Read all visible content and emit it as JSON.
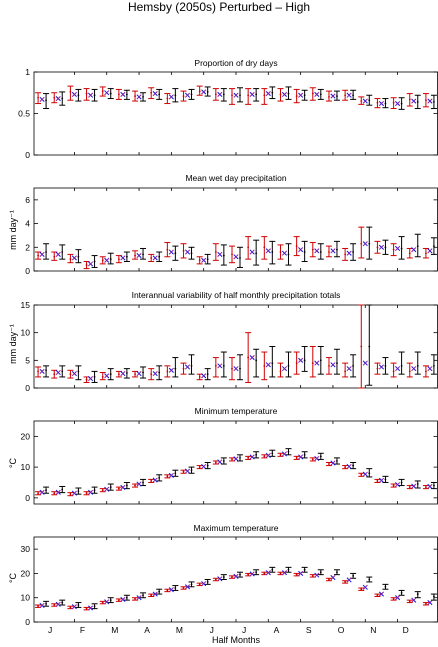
{
  "title": "Hemsby (2050s) Perturbed – High",
  "colors": {
    "black": "#000000",
    "red": "#d00000",
    "blue": "#1010e0",
    "purple": "#8a1aa0",
    "axis": "#000000"
  },
  "chart_data": [
    {
      "type": "errorbar",
      "title": "Proportion of dry days",
      "ylabel": "",
      "ylim": [
        0,
        1
      ],
      "yticks": [
        0,
        0.5,
        1
      ],
      "ytick_labels": [
        "0",
        "0.5",
        "1"
      ],
      "series": [
        {
          "name": "",
          "color": "#000000",
          "center": [
            0.66,
            0.68,
            0.72,
            0.72,
            0.74,
            0.73,
            0.7,
            0.73,
            0.72,
            0.73,
            0.76,
            0.73,
            0.72,
            0.73,
            0.75,
            0.74,
            0.72,
            0.73,
            0.71,
            0.72,
            0.66,
            0.62,
            0.62,
            0.64,
            0.64
          ],
          "low": [
            0.56,
            0.6,
            0.65,
            0.65,
            0.68,
            0.67,
            0.65,
            0.67,
            0.64,
            0.67,
            0.71,
            0.65,
            0.64,
            0.65,
            0.68,
            0.67,
            0.66,
            0.67,
            0.66,
            0.67,
            0.6,
            0.57,
            0.55,
            0.56,
            0.56
          ],
          "high": [
            0.74,
            0.76,
            0.79,
            0.79,
            0.8,
            0.78,
            0.75,
            0.79,
            0.8,
            0.79,
            0.82,
            0.8,
            0.81,
            0.8,
            0.82,
            0.82,
            0.78,
            0.79,
            0.77,
            0.78,
            0.72,
            0.68,
            0.69,
            0.72,
            0.72
          ]
        },
        {
          "name": "",
          "color": "#d00000",
          "center": [
            0.69,
            0.69,
            0.76,
            0.74,
            0.77,
            0.73,
            0.71,
            0.75,
            0.68,
            0.71,
            0.77,
            0.73,
            0.72,
            0.72,
            0.72,
            0.73,
            0.71,
            0.74,
            0.7,
            0.72,
            0.65,
            0.63,
            0.63,
            0.67,
            0.66
          ],
          "low": [
            0.62,
            0.63,
            0.66,
            0.66,
            0.71,
            0.67,
            0.65,
            0.68,
            0.62,
            0.65,
            0.72,
            0.66,
            0.61,
            0.61,
            0.61,
            0.65,
            0.63,
            0.66,
            0.65,
            0.66,
            0.61,
            0.57,
            0.56,
            0.59,
            0.58
          ],
          "high": [
            0.75,
            0.75,
            0.83,
            0.8,
            0.82,
            0.79,
            0.77,
            0.81,
            0.74,
            0.77,
            0.83,
            0.8,
            0.8,
            0.8,
            0.8,
            0.8,
            0.79,
            0.81,
            0.77,
            0.78,
            0.7,
            0.68,
            0.69,
            0.74,
            0.74
          ]
        }
      ],
      "markers": [
        0.67,
        0.68,
        0.73,
        0.72,
        0.75,
        0.73,
        0.7,
        0.74,
        0.7,
        0.72,
        0.76,
        0.73,
        0.72,
        0.73,
        0.74,
        0.73,
        0.72,
        0.73,
        0.71,
        0.72,
        0.65,
        0.62,
        0.62,
        0.65,
        0.65
      ]
    },
    {
      "type": "errorbar",
      "title": "Mean wet day precipitation",
      "ylabel": "mm day⁻¹",
      "ylim": [
        0,
        7
      ],
      "yticks": [
        0,
        2,
        4,
        6
      ],
      "ytick_labels": [
        "0",
        "2",
        "4",
        "6"
      ],
      "series": [
        {
          "name": "",
          "color": "#000000",
          "center": [
            1.6,
            1.6,
            1.2,
            0.8,
            1.0,
            1.2,
            1.4,
            1.2,
            1.5,
            1.5,
            1.0,
            1.3,
            1.1,
            1.5,
            1.6,
            1.4,
            1.6,
            1.6,
            1.8,
            1.6,
            2.3,
            2.0,
            1.9,
            2.1,
            2.1
          ],
          "low": [
            1.0,
            1.0,
            0.7,
            0.3,
            0.6,
            0.8,
            1.0,
            0.8,
            0.9,
            1.0,
            0.6,
            0.5,
            0.3,
            0.5,
            0.6,
            0.5,
            0.8,
            1.0,
            1.2,
            0.9,
            1.0,
            1.4,
            1.0,
            1.2,
            1.4
          ],
          "high": [
            2.3,
            2.2,
            1.8,
            1.3,
            1.5,
            1.6,
            1.9,
            1.6,
            2.1,
            2.0,
            1.4,
            2.2,
            2.0,
            2.6,
            2.5,
            2.3,
            2.5,
            2.3,
            2.5,
            2.3,
            3.7,
            2.6,
            2.9,
            3.1,
            2.8
          ]
        },
        {
          "name": "",
          "color": "#d00000",
          "center": [
            1.3,
            1.2,
            1.0,
            0.5,
            0.9,
            1.0,
            1.3,
            1.1,
            1.8,
            1.7,
            0.9,
            1.6,
            1.4,
            2.0,
            2.0,
            1.6,
            2.1,
            1.8,
            1.6,
            1.4,
            2.3,
            2.0,
            1.8,
            1.5,
            1.5
          ],
          "low": [
            1.0,
            0.9,
            0.7,
            0.2,
            0.6,
            0.7,
            1.0,
            0.8,
            1.2,
            1.1,
            0.6,
            0.9,
            0.7,
            1.0,
            1.0,
            1.0,
            1.3,
            1.2,
            1.2,
            0.9,
            1.1,
            1.5,
            1.3,
            1.1,
            1.1
          ],
          "high": [
            1.6,
            1.6,
            1.4,
            0.8,
            1.2,
            1.3,
            1.7,
            1.4,
            2.4,
            2.3,
            1.2,
            2.3,
            2.1,
            2.9,
            2.9,
            2.2,
            2.9,
            2.4,
            2.1,
            1.9,
            3.7,
            2.5,
            2.3,
            1.9,
            1.9
          ]
        }
      ],
      "markers": [
        1.4,
        1.4,
        1.1,
        0.6,
        0.9,
        1.1,
        1.3,
        1.1,
        1.6,
        1.6,
        0.9,
        1.4,
        1.2,
        1.6,
        1.7,
        1.5,
        1.8,
        1.7,
        1.7,
        1.5,
        2.3,
        2.0,
        1.9,
        1.8,
        1.7
      ]
    },
    {
      "type": "errorbar",
      "title": "Interannual variability of half monthly precipitation totals",
      "ylabel": "mm day⁻¹",
      "ylim": [
        0,
        15
      ],
      "yticks": [
        0,
        5,
        10,
        15
      ],
      "ytick_labels": [
        "0",
        "5",
        "10",
        "15"
      ],
      "series": [
        {
          "name": "",
          "color": "#000000",
          "center": [
            3.2,
            3.0,
            3.0,
            2.0,
            2.5,
            2.7,
            2.8,
            2.8,
            3.5,
            4.0,
            2.5,
            4.0,
            3.5,
            5.0,
            4.5,
            4.0,
            5.0,
            5.0,
            4.5,
            4.0,
            7.5,
            4.0,
            4.0,
            4.0,
            4.0
          ],
          "low": [
            2.0,
            2.0,
            1.5,
            1.0,
            1.5,
            1.8,
            1.8,
            1.5,
            2.0,
            2.5,
            1.5,
            2.0,
            1.5,
            2.0,
            2.0,
            2.0,
            3.0,
            2.5,
            2.5,
            2.0,
            0.5,
            2.5,
            2.5,
            2.5,
            2.5
          ],
          "high": [
            4.0,
            4.0,
            4.0,
            3.0,
            3.5,
            3.5,
            3.8,
            4.0,
            5.5,
            6.0,
            3.5,
            6.5,
            6.0,
            7.0,
            7.5,
            6.5,
            7.5,
            7.5,
            7.0,
            6.0,
            15.0,
            5.5,
            6.5,
            6.5,
            6.0
          ]
        },
        {
          "name": "",
          "color": "#d00000",
          "center": [
            3.0,
            2.5,
            2.5,
            1.5,
            2.0,
            2.5,
            2.5,
            2.5,
            3.0,
            3.5,
            2.0,
            4.0,
            3.5,
            5.5,
            4.0,
            3.0,
            4.5,
            4.5,
            4.0,
            3.0,
            7.5,
            3.5,
            3.0,
            3.0,
            3.0
          ],
          "low": [
            2.0,
            1.8,
            1.8,
            1.0,
            1.5,
            2.0,
            2.0,
            1.5,
            2.0,
            2.5,
            1.5,
            2.0,
            1.5,
            1.0,
            1.5,
            2.0,
            2.5,
            2.0,
            2.5,
            2.0,
            0.0,
            2.5,
            2.0,
            2.0,
            2.0
          ],
          "high": [
            3.8,
            3.2,
            3.2,
            2.0,
            2.8,
            3.0,
            3.0,
            3.5,
            4.0,
            4.5,
            2.5,
            5.5,
            5.5,
            10.0,
            6.5,
            4.5,
            6.5,
            7.5,
            5.5,
            4.5,
            15.0,
            4.5,
            4.5,
            4.5,
            4.0
          ]
        }
      ],
      "markers": [
        3.0,
        2.8,
        2.6,
        1.7,
        2.2,
        2.6,
        2.6,
        2.6,
        3.2,
        3.8,
        2.2,
        4.0,
        3.5,
        5.5,
        4.2,
        3.5,
        5.0,
        4.5,
        4.2,
        3.5,
        4.5,
        3.8,
        3.5,
        3.5,
        3.5
      ]
    },
    {
      "type": "errorbar",
      "title": "Minimum temperature",
      "ylabel": "°C",
      "ylim": [
        -2,
        25
      ],
      "yticks": [
        0,
        10,
        20
      ],
      "ytick_labels": [
        "0",
        "10",
        "20"
      ],
      "series": [
        {
          "name": "",
          "color": "#000000",
          "center": [
            2.5,
            2.7,
            2.2,
            2.5,
            3.5,
            4.0,
            5.0,
            6.5,
            8.0,
            9.0,
            10.5,
            12.0,
            13.0,
            14.0,
            14.5,
            15.0,
            14.0,
            13.5,
            12.0,
            10.5,
            8.0,
            6.0,
            5.0,
            4.5,
            4.0
          ],
          "low": [
            1.5,
            1.7,
            1.2,
            1.5,
            2.5,
            3.0,
            4.0,
            5.5,
            7.0,
            8.0,
            9.5,
            11.0,
            12.0,
            13.0,
            13.5,
            14.0,
            13.0,
            12.5,
            11.0,
            9.5,
            6.8,
            5.0,
            4.0,
            3.2,
            3.0
          ],
          "high": [
            3.5,
            3.7,
            3.2,
            3.5,
            4.5,
            5.0,
            6.0,
            7.5,
            9.0,
            10.0,
            11.5,
            13.0,
            14.0,
            15.0,
            15.5,
            16.0,
            15.0,
            14.5,
            13.0,
            11.5,
            9.5,
            7.0,
            6.0,
            5.5,
            5.0
          ]
        },
        {
          "name": "",
          "color": "#d00000",
          "center": [
            1.5,
            1.5,
            1.2,
            1.5,
            2.5,
            3.0,
            4.0,
            5.5,
            7.0,
            8.5,
            10.0,
            11.5,
            12.5,
            13.0,
            13.5,
            14.0,
            13.0,
            12.5,
            11.0,
            10.0,
            7.5,
            5.5,
            4.0,
            3.5,
            3.5
          ],
          "low": [
            1.0,
            1.0,
            0.7,
            1.0,
            2.0,
            2.5,
            3.5,
            5.0,
            6.5,
            8.0,
            9.5,
            11.0,
            12.0,
            12.5,
            13.0,
            13.5,
            12.5,
            12.0,
            10.5,
            9.5,
            7.0,
            5.0,
            3.5,
            3.0,
            3.0
          ],
          "high": [
            2.0,
            2.0,
            1.7,
            2.0,
            3.0,
            3.5,
            4.5,
            6.0,
            7.5,
            9.0,
            10.5,
            12.0,
            13.0,
            13.5,
            14.0,
            14.5,
            13.5,
            13.0,
            11.5,
            10.5,
            8.0,
            6.0,
            4.5,
            4.0,
            4.0
          ]
        }
      ],
      "markers": [
        1.8,
        1.8,
        1.5,
        1.8,
        2.8,
        3.4,
        4.5,
        5.8,
        7.3,
        8.7,
        10.2,
        11.7,
        12.7,
        13.3,
        13.8,
        14.3,
        13.3,
        12.8,
        11.3,
        10.2,
        7.7,
        5.7,
        4.3,
        3.8,
        3.7
      ]
    },
    {
      "type": "errorbar",
      "title": "Maximum temperature",
      "ylabel": "°C",
      "ylim": [
        0,
        35
      ],
      "yticks": [
        0,
        10,
        20,
        30
      ],
      "ytick_labels": [
        "0",
        "10",
        "20",
        "30"
      ],
      "series": [
        {
          "name": "",
          "color": "#000000",
          "center": [
            7.5,
            8.0,
            7.0,
            6.5,
            9.0,
            10.0,
            11.0,
            12.5,
            14.0,
            15.5,
            16.5,
            18.5,
            19.5,
            20.5,
            21.5,
            21.5,
            21.5,
            20.5,
            20.5,
            19.0,
            17.5,
            14.5,
            12.0,
            11.5,
            10.5
          ],
          "low": [
            6.5,
            7.0,
            6.0,
            5.5,
            8.0,
            9.0,
            10.0,
            11.5,
            13.0,
            14.5,
            15.5,
            17.5,
            18.5,
            19.5,
            20.5,
            20.5,
            20.5,
            19.5,
            19.5,
            18.0,
            16.5,
            13.5,
            11.0,
            10.0,
            9.0
          ],
          "high": [
            8.5,
            9.0,
            8.0,
            7.5,
            10.0,
            11.0,
            12.0,
            13.5,
            15.0,
            16.5,
            17.5,
            19.5,
            20.5,
            21.5,
            22.5,
            22.5,
            22.5,
            21.5,
            21.5,
            20.0,
            18.5,
            15.5,
            13.0,
            12.5,
            11.5
          ]
        },
        {
          "name": "",
          "color": "#d00000",
          "center": [
            6.5,
            7.0,
            6.0,
            5.5,
            8.0,
            9.0,
            9.5,
            11.0,
            13.0,
            14.0,
            15.5,
            17.5,
            18.5,
            19.5,
            20.0,
            20.0,
            19.5,
            19.0,
            17.5,
            16.5,
            13.5,
            11.0,
            9.5,
            8.5,
            7.5
          ],
          "low": [
            6.0,
            6.5,
            5.5,
            5.0,
            7.5,
            8.5,
            9.0,
            10.5,
            12.5,
            13.5,
            15.0,
            17.0,
            18.0,
            19.0,
            19.5,
            19.5,
            19.0,
            18.5,
            17.0,
            16.0,
            13.0,
            10.5,
            9.0,
            8.0,
            7.0
          ],
          "high": [
            7.0,
            7.5,
            6.5,
            6.0,
            8.5,
            9.5,
            10.0,
            11.5,
            13.5,
            14.5,
            16.0,
            18.0,
            19.0,
            20.0,
            20.5,
            20.5,
            20.0,
            19.5,
            18.0,
            17.0,
            14.0,
            11.5,
            10.0,
            9.0,
            8.0
          ]
        }
      ],
      "markers": [
        6.8,
        7.3,
        6.3,
        5.8,
        8.3,
        9.3,
        10.0,
        11.5,
        13.3,
        14.5,
        15.8,
        17.8,
        18.8,
        19.8,
        20.3,
        20.3,
        20.0,
        19.3,
        18.3,
        17.3,
        14.3,
        11.5,
        10.0,
        9.0,
        8.0
      ]
    }
  ],
  "x_axis": {
    "label": "Half Months",
    "months": [
      "J",
      "F",
      "M",
      "A",
      "M",
      "J",
      "J",
      "A",
      "S",
      "O",
      "N",
      "D"
    ]
  }
}
